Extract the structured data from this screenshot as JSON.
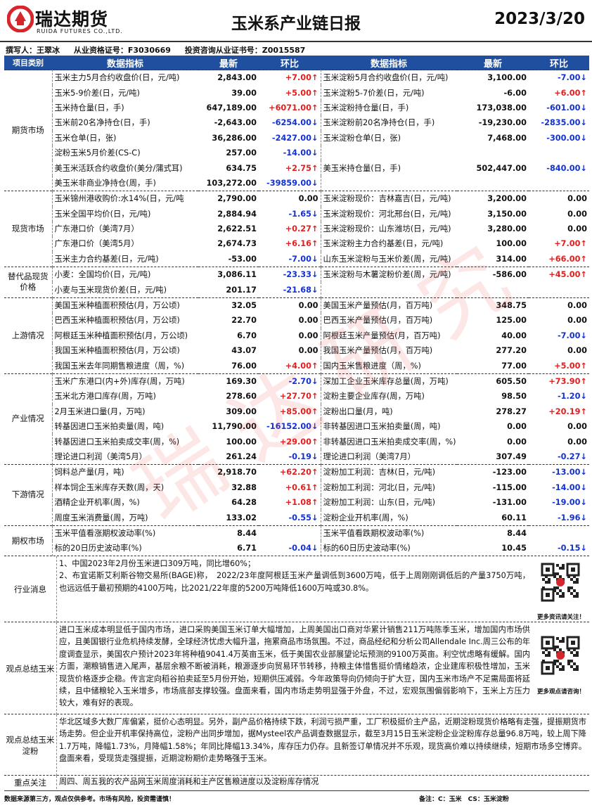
{
  "header": {
    "logo_name": "瑞达期货",
    "logo_sub": "RUIDA FUTURES CO.,LTD.",
    "title": "玉米系产业链日报",
    "date": "2023/3/20"
  },
  "author": {
    "writer": "撰写人：王翠冰",
    "qualification": "从业资格证号：F3030669",
    "consulting": "投资咨询从业证书号：Z0015587"
  },
  "watermark": "瑞达研究",
  "table": {
    "columns": [
      "项目类别",
      "数据指标",
      "最新",
      "环比",
      "数据指标",
      "最新",
      "环比"
    ],
    "sections": [
      {
        "category": "期货市场",
        "rows": [
          [
            {
              "name": "玉米主力5月合约收盘价(日，元/吨)",
              "latest": "2,843.00",
              "change": "+7.00↑"
            },
            {
              "name": "玉米淀粉5月合约收盘价(日，元/吨)",
              "latest": "3,100.00",
              "change": "-7.00↓"
            }
          ],
          [
            {
              "name": "玉米5-9价差(日，元/吨)",
              "latest": "39.00",
              "change": "+5.00↑"
            },
            {
              "name": "玉米淀粉5-7价差(日，元/吨)",
              "latest": "-6.00",
              "change": "+6.00↑"
            }
          ],
          [
            {
              "name": "玉米持仓量(日，手)",
              "latest": "647,189.00",
              "change": "+6071.00↑"
            },
            {
              "name": "玉米淀粉持仓量(日，手)",
              "latest": "173,038.00",
              "change": "-601.00↓"
            }
          ],
          [
            {
              "name": "玉米前20名净持仓(日，手)",
              "latest": "-2,643.00",
              "change": "-6254.00↓"
            },
            {
              "name": "玉米淀粉前20名净持仓(日，手)",
              "latest": "-19,230.00",
              "change": "-2835.00↓"
            }
          ],
          [
            {
              "name": "玉米仓单(日，张)",
              "latest": "36,286.00",
              "change": "-2427.00↓"
            },
            {
              "name": "玉米淀粉仓单(日，张)",
              "latest": "7,468.00",
              "change": "-300.00↓"
            }
          ],
          [
            {
              "name": "淀粉玉米5月价差(CS-C)",
              "latest": "257.00",
              "change": "-14.00↓"
            }
          ],
          [
            {
              "name": "美玉米活跃合约收盘价(美分/蒲式耳)",
              "latest": "634.75",
              "change": "+2.75↑"
            },
            {
              "name": "美玉米持仓量(日，手)",
              "latest": "502,447.00",
              "change": "-840.00↓"
            }
          ],
          [
            {
              "name": "美玉米非商业净持仓(周，手)",
              "latest": "103,272.00",
              "change": "-39859.00↓"
            }
          ]
        ]
      },
      {
        "category": "现货市场",
        "rows": [
          [
            {
              "name": "玉米锦州港收购价:水14%(日，元/吨",
              "latest": "2,790.00",
              "change": "0.00"
            },
            {
              "name": "玉米淀粉现价：吉林嘉吉(日，元/吨)",
              "latest": "3,200.00",
              "change": "0.00"
            }
          ],
          [
            {
              "name": "玉米全国平均价(日，元/吨)",
              "latest": "2,884.94",
              "change": "-1.65↓"
            },
            {
              "name": "玉米淀粉现价：河北邢台(日，元/吨)",
              "latest": "3,150.00",
              "change": "0.00"
            }
          ],
          [
            {
              "name": "广东港口价（美湾7月）",
              "latest": "2,622.51",
              "change": "+0.27↑"
            },
            {
              "name": "玉米淀粉现价：山东潍坊(日，元/吨)",
              "latest": "3,280.00",
              "change": "0.00"
            }
          ],
          [
            {
              "name": "广东港口价（美湾5月）",
              "latest": "2,674.73",
              "change": "+6.16↑"
            },
            {
              "name": "玉米淀粉主力合约基差(日，元/吨)",
              "latest": "100.00",
              "change": "+7.00↑"
            }
          ],
          [
            {
              "name": "玉米主力合约基差(日，元/吨)",
              "latest": "-53.00",
              "change": "-7.00↓"
            },
            {
              "name": "山东玉米淀粉与玉米价差(周，元/吨)",
              "latest": "314.00",
              "change": "+66.00↑"
            }
          ]
        ]
      },
      {
        "category": "替代品现货价格",
        "rows": [
          [
            {
              "name": "小麦：全国均价(日，元/吨)",
              "latest": "3,086.11",
              "change": "-23.33↓"
            },
            {
              "name": "玉米淀粉与木薯淀粉价差(周，元/吨)",
              "latest": "-586.00",
              "change": "+45.00↑"
            }
          ],
          [
            {
              "name": "小麦与玉米现货价差(日，元/吨)",
              "latest": "201.17",
              "change": "-21.68↓"
            }
          ]
        ]
      },
      {
        "category": "上游情况",
        "rows": [
          [
            {
              "name": "美国玉米种植面积预估(月，万公顷)",
              "latest": "32.05",
              "change": "0.00"
            },
            {
              "name": "美国玉米产量预估(月，百万吨)",
              "latest": "348.75",
              "change": "0.00"
            }
          ],
          [
            {
              "name": "巴西玉米种植面积预估(月，万公顷)",
              "latest": "22.70",
              "change": "0.00"
            },
            {
              "name": "巴西玉米产量预估(月，百万吨)",
              "latest": "125.00",
              "change": "0.00"
            }
          ],
          [
            {
              "name": "阿根廷玉米种植面积预估(月，万公顷)",
              "latest": "6.70",
              "change": "0.00"
            },
            {
              "name": "阿根廷玉米产量预估(月，百万吨)",
              "latest": "40.00",
              "change": "-7.00↓"
            }
          ],
          [
            {
              "name": "我国玉米种植面积预估(月，万公顷)",
              "latest": "43.07",
              "change": "0.00"
            },
            {
              "name": "我国玉米产量预估(月，百万吨)",
              "latest": "277.20",
              "change": "0.00"
            }
          ],
          [
            {
              "name": "我国玉米去年同期售粮进度（周，%)",
              "latest": "76.00",
              "change": "+4.00↑"
            },
            {
              "name": "国内玉米售粮进度（周，%)",
              "latest": "77.00",
              "change": "+5.00↑"
            }
          ]
        ]
      },
      {
        "category": "产业情况",
        "rows": [
          [
            {
              "name": "玉米广东港口(内+外)库存(周，万吨)",
              "latest": "169.30",
              "change": "-2.70↓"
            },
            {
              "name": "深加工企业玉米库存总量(周，万吨)",
              "latest": "605.50",
              "change": "+73.90↑"
            }
          ],
          [
            {
              "name": "玉米北方港口库存(周，万吨)",
              "latest": "278.60",
              "change": "+27.70↑"
            },
            {
              "name": "淀粉主要企业库存(周，万吨)",
              "latest": "98.50",
              "change": "-1.20↓"
            }
          ],
          [
            {
              "name": "2月玉米进口量(月，万吨)",
              "latest": "309.00",
              "change": "+85.00↑"
            },
            {
              "name": "淀粉出口量(月，吨)",
              "latest": "278.27",
              "change": "+20.19↑"
            }
          ],
          [
            {
              "name": "转基因进口玉米拍卖量(周，吨)",
              "latest": "11,790.00",
              "change": "-16152.00↓"
            },
            {
              "name": "非转基因进口玉米拍卖量(周，吨)",
              "latest": "0.00",
              "change": "0.00"
            }
          ],
          [
            {
              "name": "转基因进口玉米拍卖成交率(周，%)",
              "latest": "100.00",
              "change": "+29.00↑"
            },
            {
              "name": "非转基因进口玉米拍卖成交率(周，%)",
              "latest": "0.00",
              "change": "0.00"
            }
          ],
          [
            {
              "name": "理论进口利润（美湾5月）",
              "latest": "261.24",
              "change": "-0.19↓"
            },
            {
              "name": "理论进口利润（美湾7月）",
              "latest": "307.49",
              "change": "-0.27↓"
            }
          ]
        ]
      },
      {
        "category": "下游情况",
        "rows": [
          [
            {
              "name": "饲料总产量(月，吨)",
              "latest": "2,918.70",
              "change": "+62.20↑"
            },
            {
              "name": "淀粉加工利润：吉林(日，元/吨)",
              "latest": "-123.00",
              "change": "-13.00↓"
            }
          ],
          [
            {
              "name": "样本饲企玉米库存天数(周，天)",
              "latest": "32.88",
              "change": "+0.61↑"
            },
            {
              "name": "淀粉加工利润：河北(日，元/吨)",
              "latest": "-115.00",
              "change": "-14.00↓"
            }
          ],
          [
            {
              "name": "酒精企业开机率(周，%)",
              "latest": "64.28",
              "change": "+1.08↑"
            },
            {
              "name": "淀粉加工利润：山东(日，元/吨)",
              "latest": "-131.00",
              "change": "-19.00↓"
            }
          ],
          [
            {
              "name": "周度玉米消费量(周，万吨)",
              "latest": "133.02",
              "change": "-0.55↓"
            },
            {
              "name": "淀粉企业开机率(周，%)",
              "latest": "60.11",
              "change": "-1.96↓"
            }
          ]
        ]
      },
      {
        "category": "期权市场",
        "rows": [
          [
            {
              "name": "玉米平值看涨期权波动率(%)",
              "latest": "8.44"
            },
            {
              "name": "玉米平值看跌期权波动率(%)",
              "latest": "8.44"
            }
          ],
          [
            {
              "name": "标的20日历史波动率(%)",
              "latest": "6.71",
              "change": "-0.04↓"
            },
            {
              "name": "标的60日历史波动率(%)",
              "latest": "10.45",
              "change": "-0.15↓"
            }
          ]
        ]
      }
    ]
  },
  "notes": [
    {
      "label": "行业消息",
      "paragraphs": [
        "1、中国2023年2月份玉米进口309万吨，同比增60%；",
        "2、布宜诺斯艾利斯谷物交易所(BAGE)称，　2022/23年度阿根廷玉米产量调低到3600万吨，低于上周刚刚调低后的产量3750万吨，也远远低于最初预期的4100万吨，比2021/22年度的5200万吨降低1600万吨或30.8%。"
      ],
      "qr_caption": "更多资讯请关注！"
    },
    {
      "label": "观点总结玉米",
      "paragraphs": [
        "进口玉米成本明显低于国内市场，进口采购美国玉米订单大幅增加，上周美国出口商对华累计销售211万吨陈季玉米，增加国内市场供应，且美国银行业危机持续发酵，全球经济忧虑大幅升温，拖累商品市场氛围。不过，商品经纪和分析公司Allendale Inc.周三公布的年度调查显示，美国农户预计2023年将种植9041.4万英亩玉米，低于美国农业部展望论坛预测的9100万英亩。利空忧虑略有缓解。国内方面，潮粮销售进入尾声，基层余粮不断被消耗，粮源逐步向贸易环节转移，持粮主体惜售挺价情绪趋浓，企业建库积极性增加，玉米现货价格逐步企稳。传言定向稻谷拍卖延至5月份开始，短期供压减弱。今年政策导向仍倾向于扩大豆，国内玉米市场产不足需局面将延续，且中储粮轮入玉米增多，市场底部支撑较强。盘面来看，国内市场走势明显强于外盘，不过，宏观氛围偏弱影响下，玉米上方压力较大，难有好的表现。"
      ],
      "qr_caption": "更多观点请咨询！"
    },
    {
      "label": "观点总结玉米淀粉",
      "paragraphs": [
        "华北区域多大数厂库偏紧，挺价心态明显。另外，副产品价格持续下跌，利润亏损严重，工厂积极挺价主产品，近期淀粉现货价格略有走强，提振期货市场走势。但企业开机率保持高位，淀粉产出同步增加，据Mysteel农产品调查数据显示，截至3月15日玉米淀粉企业淀粉库存总量96.8万吨，较上周下降1.7万吨，降幅1.73%，月降幅1.58%；年同比降幅13.34%，库存压力仍存。且新签订单情况并不乐观，现货高价难以持续继续，短期市场多空博弈。盘面来看，受现货走强提振，近期淀粉期价走势略强于玉米。"
      ]
    },
    {
      "label": "重点关注",
      "paragraphs": [
        "周四、周五我的农产品网玉米周度消耗和主产区售粮进度以及淀粉库存情况"
      ]
    }
  ],
  "footer": {
    "disclaimer": "数据来源第三方，观点仅供参考。市场有风险，投资需谨慎！",
    "remark": "备注：C：玉米　CS：玉米淀粉"
  }
}
